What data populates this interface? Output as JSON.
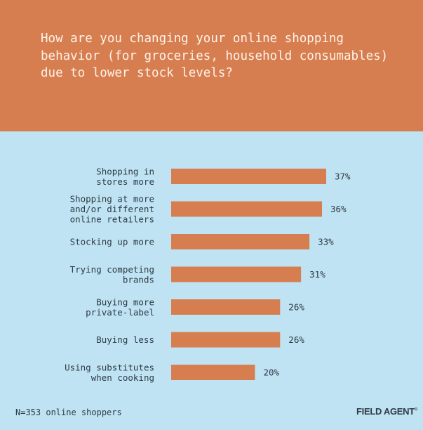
{
  "title": "How are you changing your online shopping behavior (for groceries, household consumables) due to lower stock levels?",
  "footnote": "N=353 online shoppers",
  "brand": "FIELD AGENT",
  "colors": {
    "header": "#d77e50",
    "background": "#bfe3f3",
    "bar": "#d77e50",
    "text": "#2e3b44"
  },
  "chart_data": {
    "type": "bar",
    "orientation": "horizontal",
    "categories": [
      [
        "Shopping in",
        "stores more"
      ],
      [
        "Shopping at more",
        "and/or different",
        "online retailers"
      ],
      [
        "Stocking up more"
      ],
      [
        "Trying competing",
        "brands"
      ],
      [
        "Buying more",
        "private-label"
      ],
      [
        "Buying less"
      ],
      [
        "Using substitutes",
        "when cooking"
      ]
    ],
    "values": [
      37,
      36,
      33,
      31,
      26,
      26,
      20
    ],
    "value_suffix": "%",
    "xlim": [
      0,
      37
    ],
    "grid": false,
    "legend": "none"
  }
}
